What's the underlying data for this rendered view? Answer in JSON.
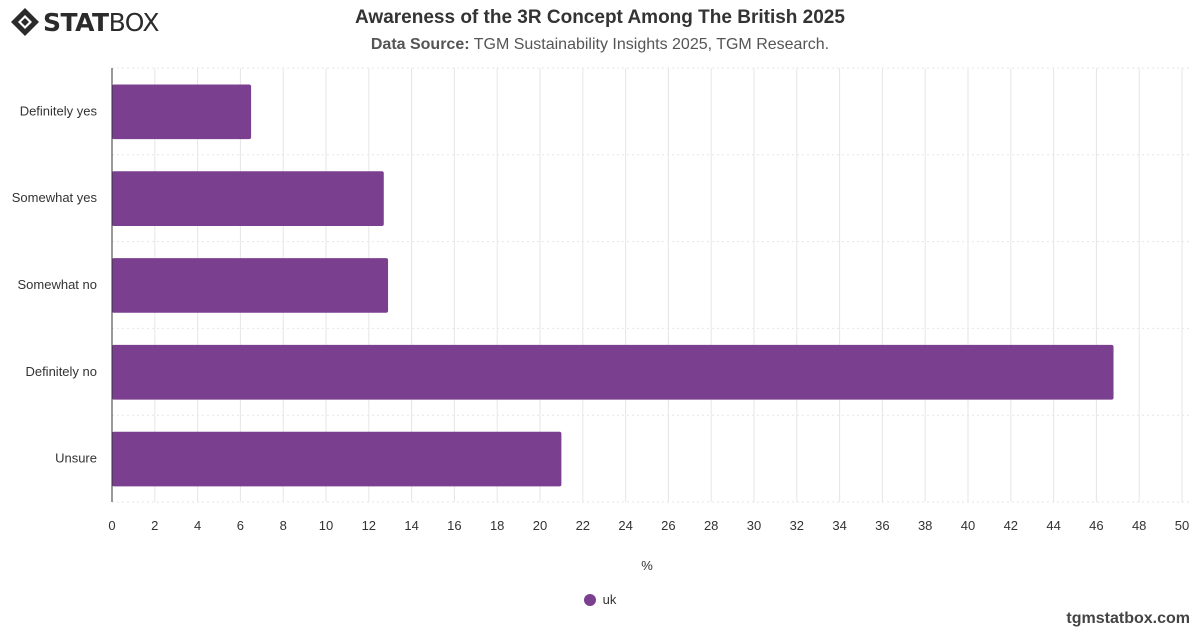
{
  "brand": {
    "logo_bold": "STAT",
    "logo_light": "BOX",
    "watermark": "tgmstatbox.com"
  },
  "header": {
    "title": "Awareness of the 3R Concept Among The British 2025",
    "source_label": "Data Source:",
    "source_text": "TGM Sustainability Insights 2025, TGM Research."
  },
  "colors": {
    "bar": "#7b3f8f",
    "grid": "#e6e6e6",
    "axis": "#333333"
  },
  "chart_data": {
    "type": "bar",
    "orientation": "horizontal",
    "categories": [
      "Definitely yes",
      "Somewhat yes",
      "Somewhat no",
      "Definitely no",
      "Unsure"
    ],
    "series": [
      {
        "name": "uk",
        "values": [
          6.5,
          12.7,
          12.9,
          46.8,
          21.0
        ]
      }
    ],
    "xlabel": "%",
    "ylabel": "",
    "xlim": [
      0,
      50
    ],
    "xticks": [
      "0",
      "2",
      "4",
      "6",
      "8",
      "10",
      "12",
      "14",
      "16",
      "18",
      "20",
      "22",
      "24",
      "26",
      "28",
      "30",
      "32",
      "34",
      "36",
      "38",
      "40",
      "42",
      "44",
      "46",
      "48",
      "50"
    ],
    "grid": true,
    "legend_position": "bottom"
  }
}
